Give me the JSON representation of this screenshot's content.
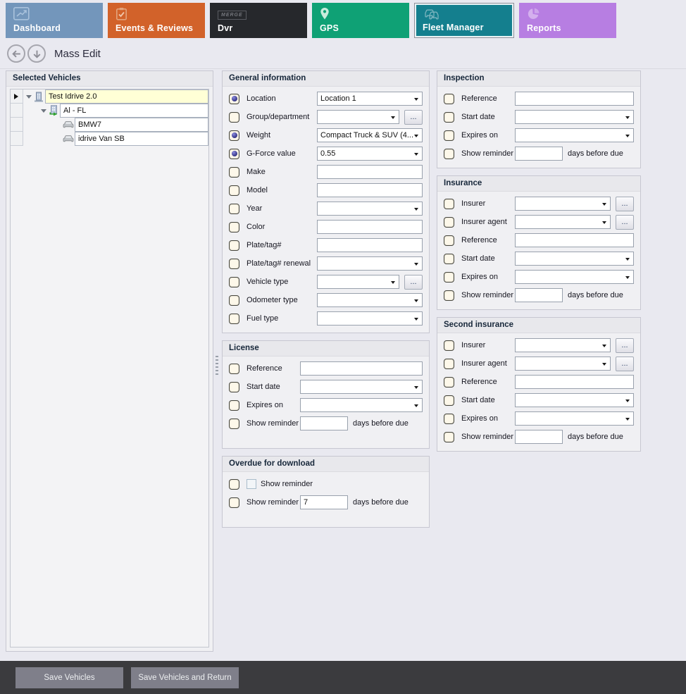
{
  "ui": {
    "ellipsis_label": "..."
  },
  "tabs": [
    {
      "label": "Dashboard",
      "icon": "line-chart-icon",
      "color": "#7396bb",
      "active": false
    },
    {
      "label": "Events & Reviews",
      "icon": "clipboard-check-icon",
      "color": "#d2622a",
      "active": false
    },
    {
      "label": "Dvr",
      "icon": "merge-logo-icon",
      "color": "#26282c",
      "active": false,
      "logo_text": "MERGE"
    },
    {
      "label": "GPS",
      "icon": "location-pin-icon",
      "color": "#0fa175",
      "active": false
    },
    {
      "label": "Fleet Manager",
      "icon": "fleet-cars-icon",
      "color": "#147f8e",
      "active": true
    },
    {
      "label": "Reports",
      "icon": "pie-chart-icon",
      "color": "#b77ee2",
      "active": false
    }
  ],
  "header": {
    "title": "Mass Edit"
  },
  "vehicle_tree": {
    "panel_title": "Selected Vehicles",
    "nodes": [
      {
        "label": "Test Idrive 2.0",
        "level": 0,
        "icon": "company-icon",
        "expandable": true,
        "selected": true,
        "row_marker": true
      },
      {
        "label": "Al - FL",
        "level": 1,
        "icon": "group-icon",
        "expandable": true,
        "selected": false,
        "row_marker": false
      },
      {
        "label": "BMW7",
        "level": 2,
        "icon": "vehicle-icon",
        "expandable": false,
        "selected": false,
        "row_marker": false
      },
      {
        "label": "idrive Van SB",
        "level": 2,
        "icon": "vehicle-icon",
        "expandable": false,
        "selected": false,
        "row_marker": false
      }
    ]
  },
  "panels": {
    "general": {
      "title": "General information",
      "fields": [
        {
          "label": "Location",
          "checked": true,
          "type": "combo",
          "value": "Location 1"
        },
        {
          "label": "Group/department",
          "checked": false,
          "type": "combo-ellipsis",
          "value": ""
        },
        {
          "label": "Weight",
          "checked": true,
          "type": "combo",
          "value": "Compact Truck & SUV (4..."
        },
        {
          "label": "G-Force value",
          "checked": true,
          "type": "combo",
          "value": "0.55"
        },
        {
          "label": "Make",
          "checked": false,
          "type": "text",
          "value": ""
        },
        {
          "label": "Model",
          "checked": false,
          "type": "text",
          "value": ""
        },
        {
          "label": "Year",
          "checked": false,
          "type": "combo",
          "value": ""
        },
        {
          "label": "Color",
          "checked": false,
          "type": "text",
          "value": ""
        },
        {
          "label": "Plate/tag#",
          "checked": false,
          "type": "text",
          "value": ""
        },
        {
          "label": "Plate/tag# renewal",
          "checked": false,
          "type": "combo",
          "value": ""
        },
        {
          "label": "Vehicle type",
          "checked": false,
          "type": "combo-ellipsis",
          "value": ""
        },
        {
          "label": "Odometer type",
          "checked": false,
          "type": "combo",
          "value": ""
        },
        {
          "label": "Fuel type",
          "checked": false,
          "type": "combo",
          "value": ""
        }
      ]
    },
    "license": {
      "title": "License",
      "fields": [
        {
          "label": "Reference",
          "checked": false,
          "type": "text",
          "value": ""
        },
        {
          "label": "Start date",
          "checked": false,
          "type": "combo",
          "value": ""
        },
        {
          "label": "Expires on",
          "checked": false,
          "type": "combo",
          "value": ""
        },
        {
          "label": "Show reminder",
          "checked": false,
          "type": "reminder",
          "value": "",
          "suffix": "days before due"
        }
      ]
    },
    "overdue": {
      "title": "Overdue for download",
      "fields": [
        {
          "label": "Show reminder",
          "checked": false,
          "type": "sub-checkbox"
        },
        {
          "label": "Show reminder",
          "checked": false,
          "type": "reminder",
          "value": "7",
          "suffix": "days before due"
        }
      ]
    },
    "inspection": {
      "title": "Inspection",
      "fields": [
        {
          "label": "Reference",
          "checked": false,
          "type": "text",
          "value": ""
        },
        {
          "label": "Start date",
          "checked": false,
          "type": "combo",
          "value": ""
        },
        {
          "label": "Expires on",
          "checked": false,
          "type": "combo",
          "value": ""
        },
        {
          "label": "Show reminder",
          "checked": false,
          "type": "reminder",
          "value": "",
          "suffix": "days before due"
        }
      ]
    },
    "insurance": {
      "title": "Insurance",
      "fields": [
        {
          "label": "Insurer",
          "checked": false,
          "type": "combo-ellipsis",
          "value": ""
        },
        {
          "label": "Insurer agent",
          "checked": false,
          "type": "combo-ellipsis",
          "value": ""
        },
        {
          "label": "Reference",
          "checked": false,
          "type": "text",
          "value": ""
        },
        {
          "label": "Start date",
          "checked": false,
          "type": "combo",
          "value": ""
        },
        {
          "label": "Expires on",
          "checked": false,
          "type": "combo",
          "value": ""
        },
        {
          "label": "Show reminder",
          "checked": false,
          "type": "reminder",
          "value": "",
          "suffix": "days before due"
        }
      ]
    },
    "second_insurance": {
      "title": "Second insurance",
      "fields": [
        {
          "label": "Insurer",
          "checked": false,
          "type": "combo-ellipsis",
          "value": ""
        },
        {
          "label": "Insurer agent",
          "checked": false,
          "type": "combo-ellipsis",
          "value": ""
        },
        {
          "label": "Reference",
          "checked": false,
          "type": "text",
          "value": ""
        },
        {
          "label": "Start date",
          "checked": false,
          "type": "combo",
          "value": ""
        },
        {
          "label": "Expires on",
          "checked": false,
          "type": "combo",
          "value": ""
        },
        {
          "label": "Show reminder",
          "checked": false,
          "type": "reminder",
          "value": "",
          "suffix": "days before due"
        }
      ]
    }
  },
  "footer": {
    "save_label": "Save Vehicles",
    "save_return_label": "Save Vehicles and Return"
  }
}
